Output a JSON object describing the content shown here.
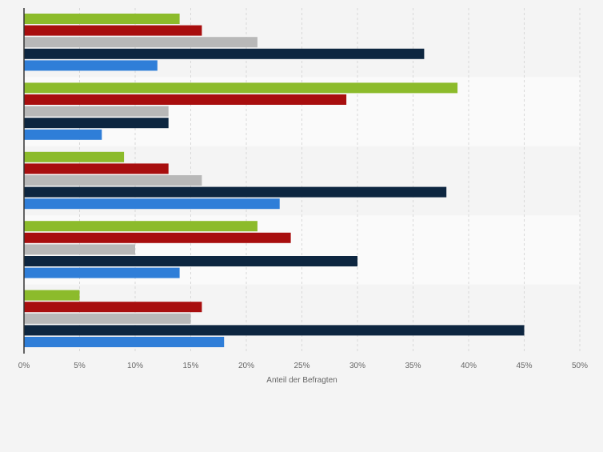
{
  "chart_data": {
    "type": "bar",
    "orientation": "horizontal",
    "xlabel": "Anteil der Befragten",
    "xlim": [
      0,
      50
    ],
    "x_ticks": [
      "0%",
      "5%",
      "10%",
      "15%",
      "20%",
      "25%",
      "30%",
      "35%",
      "40%",
      "45%",
      "50%"
    ],
    "grid": true,
    "categories": [
      "",
      "",
      "",
      "",
      ""
    ],
    "series": [
      {
        "color": "#8cbb2b",
        "values": [
          14,
          39,
          9,
          21,
          5
        ]
      },
      {
        "color": "#a80e0e",
        "values": [
          16,
          29,
          13,
          24,
          16
        ]
      },
      {
        "color": "#b8b8b8",
        "values": [
          21,
          13,
          16,
          10,
          15
        ]
      },
      {
        "color": "#0d2640",
        "values": [
          36,
          13,
          38,
          30,
          45
        ]
      },
      {
        "color": "#2f7ed8",
        "values": [
          12,
          7,
          23,
          14,
          18
        ]
      }
    ]
  }
}
